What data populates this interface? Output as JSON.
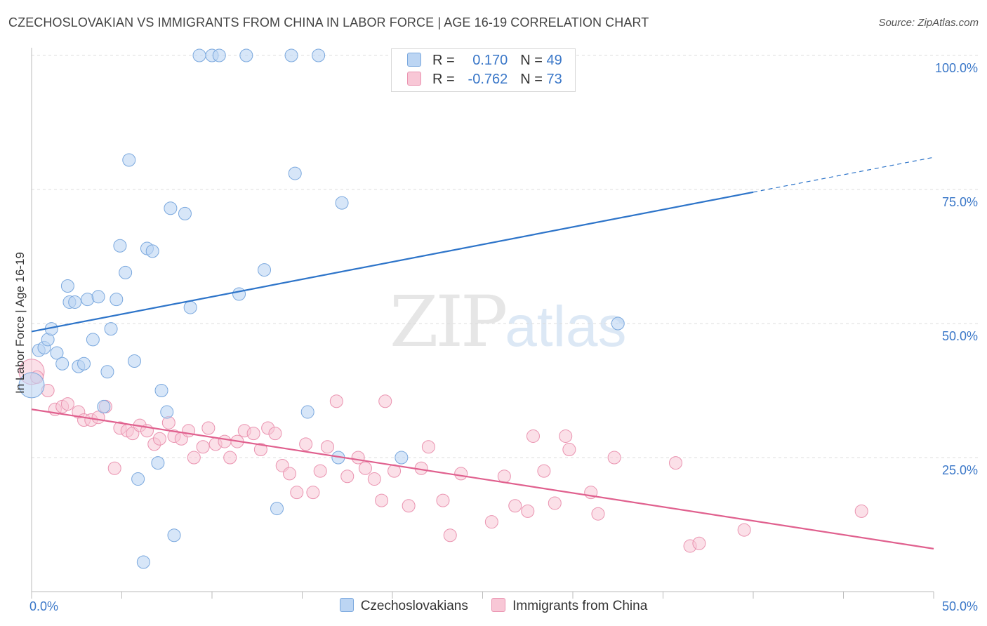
{
  "title": "CZECHOSLOVAKIAN VS IMMIGRANTS FROM CHINA IN LABOR FORCE | AGE 16-19 CORRELATION CHART",
  "source": "Source: ZipAtlas.com",
  "watermark": {
    "zip": "ZIP",
    "atlas": "atlas"
  },
  "legend_top": {
    "r_label": "R =",
    "n_label": "N =",
    "rows": [
      {
        "r": "0.170",
        "n": "49"
      },
      {
        "r": "-0.762",
        "n": "73"
      }
    ]
  },
  "colors": {
    "blue_fill": "#bcd5f3",
    "blue_stroke": "#7aa8de",
    "blue_line": "#2d74c9",
    "pink_fill": "#f8c7d6",
    "pink_stroke": "#ea93b0",
    "pink_line": "#e0608e",
    "tick_label": "#3a77c8",
    "grid": "#dcdcdc"
  },
  "chart_data": {
    "type": "scatter",
    "title": "CZECHOSLOVAKIAN VS IMMIGRANTS FROM CHINA IN LABOR FORCE | AGE 16-19 CORRELATION CHART",
    "xlabel": "",
    "ylabel": "In Labor Force | Age 16-19",
    "xlim": [
      0,
      50
    ],
    "ylim": [
      0,
      100
    ],
    "x_tick_labels": [
      "0.0%",
      "50.0%"
    ],
    "y_ticks": [
      25,
      50,
      75,
      100
    ],
    "y_tick_labels": [
      "25.0%",
      "50.0%",
      "75.0%",
      "100.0%"
    ],
    "grid": true,
    "legend_placement": "top-center",
    "series": [
      {
        "name": "Czechoslovakians",
        "color": "blue",
        "trend": {
          "x0": 0,
          "y0": 48.5,
          "x1": 40,
          "y1": 74.5,
          "dashed_to_x": 50,
          "dashed_to_y": 81
        },
        "points": [
          [
            0.0,
            38.5
          ],
          [
            0.4,
            45.0
          ],
          [
            0.7,
            45.5
          ],
          [
            0.9,
            47.0
          ],
          [
            1.1,
            49.0
          ],
          [
            1.4,
            44.5
          ],
          [
            1.7,
            42.5
          ],
          [
            2.0,
            57.0
          ],
          [
            2.1,
            54.0
          ],
          [
            2.4,
            54.0
          ],
          [
            2.6,
            42.0
          ],
          [
            2.9,
            42.5
          ],
          [
            3.1,
            54.5
          ],
          [
            3.4,
            47.0
          ],
          [
            3.7,
            55.0
          ],
          [
            4.0,
            34.5
          ],
          [
            4.2,
            41.0
          ],
          [
            4.4,
            49.0
          ],
          [
            4.7,
            54.5
          ],
          [
            4.9,
            64.5
          ],
          [
            5.2,
            59.5
          ],
          [
            5.4,
            80.5
          ],
          [
            5.7,
            43.0
          ],
          [
            5.9,
            21.0
          ],
          [
            6.2,
            5.5
          ],
          [
            6.4,
            64.0
          ],
          [
            6.7,
            63.5
          ],
          [
            7.0,
            24.0
          ],
          [
            7.2,
            37.5
          ],
          [
            7.5,
            33.5
          ],
          [
            7.7,
            71.5
          ],
          [
            7.9,
            10.5
          ],
          [
            8.5,
            70.5
          ],
          [
            8.8,
            53.0
          ],
          [
            9.3,
            100.0
          ],
          [
            10.0,
            100.0
          ],
          [
            10.4,
            100.0
          ],
          [
            11.5,
            55.5
          ],
          [
            11.9,
            100.0
          ],
          [
            12.9,
            60.0
          ],
          [
            13.6,
            15.5
          ],
          [
            14.4,
            100.0
          ],
          [
            14.6,
            78.0
          ],
          [
            15.3,
            33.5
          ],
          [
            15.9,
            100.0
          ],
          [
            17.0,
            25.0
          ],
          [
            17.2,
            72.5
          ],
          [
            20.5,
            25.0
          ],
          [
            32.5,
            50.0
          ]
        ]
      },
      {
        "name": "Immigrants from China",
        "color": "pink",
        "trend": {
          "x0": 0,
          "y0": 34.0,
          "x1": 50,
          "y1": 8.0
        },
        "points": [
          [
            0.0,
            41.0
          ],
          [
            0.3,
            40.0
          ],
          [
            0.9,
            37.5
          ],
          [
            1.3,
            34.0
          ],
          [
            1.7,
            34.5
          ],
          [
            2.0,
            35.0
          ],
          [
            2.6,
            33.5
          ],
          [
            2.9,
            32.0
          ],
          [
            3.3,
            32.0
          ],
          [
            3.7,
            32.5
          ],
          [
            4.1,
            34.5
          ],
          [
            4.6,
            23.0
          ],
          [
            4.9,
            30.5
          ],
          [
            5.3,
            30.0
          ],
          [
            5.6,
            29.5
          ],
          [
            6.0,
            31.0
          ],
          [
            6.4,
            30.0
          ],
          [
            6.8,
            27.5
          ],
          [
            7.1,
            28.5
          ],
          [
            7.6,
            31.5
          ],
          [
            7.9,
            29.0
          ],
          [
            8.3,
            28.5
          ],
          [
            8.7,
            30.0
          ],
          [
            9.0,
            25.0
          ],
          [
            9.5,
            27.0
          ],
          [
            9.8,
            30.5
          ],
          [
            10.2,
            27.5
          ],
          [
            10.7,
            28.0
          ],
          [
            11.0,
            25.0
          ],
          [
            11.4,
            28.0
          ],
          [
            11.8,
            30.0
          ],
          [
            12.3,
            29.5
          ],
          [
            12.7,
            26.5
          ],
          [
            13.1,
            30.5
          ],
          [
            13.5,
            29.5
          ],
          [
            13.9,
            23.5
          ],
          [
            14.3,
            22.0
          ],
          [
            14.7,
            18.5
          ],
          [
            15.2,
            27.5
          ],
          [
            15.6,
            18.5
          ],
          [
            16.0,
            22.5
          ],
          [
            16.4,
            27.0
          ],
          [
            16.9,
            35.5
          ],
          [
            17.5,
            21.5
          ],
          [
            18.1,
            25.0
          ],
          [
            18.5,
            23.0
          ],
          [
            19.0,
            21.0
          ],
          [
            19.4,
            17.0
          ],
          [
            19.6,
            35.5
          ],
          [
            20.1,
            22.5
          ],
          [
            20.9,
            16.0
          ],
          [
            21.6,
            23.0
          ],
          [
            22.0,
            27.0
          ],
          [
            22.8,
            17.0
          ],
          [
            23.2,
            10.5
          ],
          [
            23.8,
            22.0
          ],
          [
            25.5,
            13.0
          ],
          [
            26.2,
            21.5
          ],
          [
            26.8,
            16.0
          ],
          [
            27.5,
            15.0
          ],
          [
            27.8,
            29.0
          ],
          [
            28.4,
            22.5
          ],
          [
            29.0,
            16.5
          ],
          [
            29.6,
            29.0
          ],
          [
            29.8,
            26.5
          ],
          [
            31.0,
            18.5
          ],
          [
            31.4,
            14.5
          ],
          [
            32.3,
            25.0
          ],
          [
            35.7,
            24.0
          ],
          [
            36.5,
            8.5
          ],
          [
            37.0,
            9.0
          ],
          [
            39.5,
            11.5
          ],
          [
            46.0,
            15.0
          ]
        ]
      }
    ]
  },
  "legend_bottom": [
    {
      "label": "Czechoslovakians",
      "color": "blue"
    },
    {
      "label": "Immigrants from China",
      "color": "pink"
    }
  ]
}
